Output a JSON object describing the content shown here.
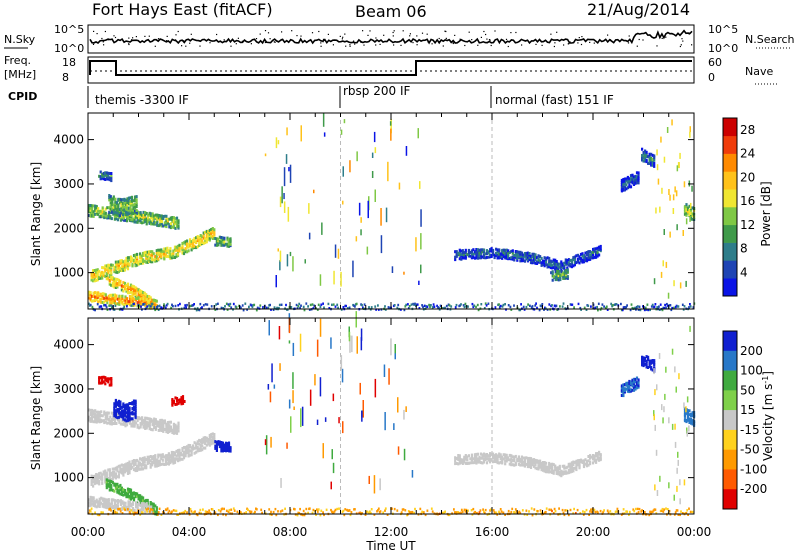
{
  "header": {
    "station": "Fort Hays East (fitACF)",
    "beam": "Beam 06",
    "date": "21/Aug/2014"
  },
  "noise_panel": {
    "left_label": "N.Sky",
    "left_ticks": [
      "10^5",
      "10^0"
    ],
    "right_ticks": [
      "10^5",
      "10^0"
    ],
    "right_label": "N.Search"
  },
  "freq_panel": {
    "left_label_1": "Freq.",
    "left_label_2": "[MHz]",
    "left_ticks": [
      "18",
      "8"
    ],
    "right_ticks": [
      "60",
      "0"
    ],
    "right_label": "Nave"
  },
  "cpid": {
    "label": "CPID",
    "segments": [
      {
        "name": "themis -3300 IF",
        "start_hour": 0
      },
      {
        "name": "rbsp 200 IF",
        "start_hour": 10
      },
      {
        "name": "normal (fast) 151 IF",
        "start_hour": 16
      }
    ]
  },
  "chart_data": [
    {
      "type": "heatmap",
      "title": "Power",
      "xlabel": "Time UT",
      "ylabel": "Slant Range [km]",
      "xlim": [
        0,
        24
      ],
      "ylim": [
        180,
        4600
      ],
      "x_ticks": [
        "00:00",
        "04:00",
        "08:00",
        "12:00",
        "16:00",
        "20:00",
        "00:00"
      ],
      "y_ticks": [
        "1000",
        "2000",
        "3000",
        "4000"
      ],
      "y_tick_values": [
        1000,
        2000,
        3000,
        4000
      ],
      "colorbar": {
        "label": "Power [dB]",
        "ticks": [
          "4",
          "8",
          "12",
          "16",
          "20",
          "24",
          "28"
        ],
        "tick_values": [
          4,
          8,
          12,
          16,
          20,
          24,
          28
        ],
        "range": [
          0,
          30
        ],
        "colors": [
          "#0a14e6",
          "#1e44b4",
          "#2e7d8a",
          "#3f9a4a",
          "#7fc845",
          "#f0e632",
          "#ffc21a",
          "#ff8a00",
          "#f03c0a",
          "#cc0000"
        ]
      },
      "regions": [
        {
          "label": "arc",
          "t": [
            0.1,
            2.0,
            3.4,
            4.5,
            5.0
          ],
          "r": [
            950,
            1350,
            1500,
            1800,
            1950
          ],
          "width": 120,
          "value": 19
        },
        {
          "label": "upper-band",
          "t": [
            0.0,
            1.4,
            2.6,
            3.6
          ],
          "r": [
            2450,
            2350,
            2250,
            2150
          ],
          "width": 130,
          "value": 15
        },
        {
          "label": "lower-spur",
          "t": [
            0.7,
            1.7,
            2.7
          ],
          "r": [
            900,
            650,
            300
          ],
          "width": 100,
          "value": 21
        },
        {
          "label": "low-band",
          "t": [
            0.0,
            1.2,
            2.5
          ],
          "r": [
            500,
            420,
            330
          ],
          "width": 90,
          "value": 23
        },
        {
          "label": "block-2500",
          "t": [
            0.8,
            1.3,
            1.9
          ],
          "r": [
            2600,
            2520,
            2600
          ],
          "width": 200,
          "value": 14
        },
        {
          "label": "patch-1700",
          "t": [
            5.0,
            5.6
          ],
          "r": [
            1750,
            1720
          ],
          "width": 90,
          "value": 14
        },
        {
          "label": "patch-3200",
          "t": [
            0.4,
            0.9
          ],
          "r": [
            3250,
            3200
          ],
          "width": 80,
          "value": 10
        },
        {
          "label": "evening-band",
          "t": [
            14.5,
            16.0,
            17.4,
            18.7,
            20.3
          ],
          "r": [
            1450,
            1500,
            1400,
            1200,
            1550
          ],
          "width": 110,
          "value": 7
        },
        {
          "label": "evening-patch",
          "t": [
            18.3,
            19.0
          ],
          "r": [
            950,
            1000
          ],
          "width": 90,
          "value": 13
        },
        {
          "label": "late-1",
          "t": [
            21.1,
            21.8
          ],
          "r": [
            3000,
            3200
          ],
          "width": 120,
          "value": 6
        },
        {
          "label": "late-2",
          "t": [
            21.9,
            22.4
          ],
          "r": [
            3700,
            3550
          ],
          "width": 120,
          "value": 9
        },
        {
          "label": "late-3",
          "t": [
            23.6,
            24.0
          ],
          "r": [
            2450,
            2350
          ],
          "width": 140,
          "value": 16
        }
      ],
      "ground_band": {
        "t": [
          0,
          24
        ],
        "r": [
          180,
          330
        ],
        "value": 6
      }
    },
    {
      "type": "heatmap",
      "title": "Velocity",
      "xlabel": "Time UT",
      "ylabel": "Slant Range [km]",
      "xlim": [
        0,
        24
      ],
      "ylim": [
        180,
        4600
      ],
      "x_ticks": [
        "00:00",
        "04:00",
        "08:00",
        "12:00",
        "16:00",
        "20:00",
        "00:00"
      ],
      "y_ticks": [
        "1000",
        "2000",
        "3000",
        "4000"
      ],
      "y_tick_values": [
        1000,
        2000,
        3000,
        4000
      ],
      "colorbar": {
        "label": "Velocity [m s^-1]",
        "ticks": [
          "200",
          "100",
          "50",
          "15",
          "-15",
          "-50",
          "-100",
          "-200"
        ],
        "colors": [
          "#1020d0",
          "#2878c8",
          "#3faa3f",
          "#7fd04a",
          "#c8c8c8",
          "#ffd21e",
          "#ff9a00",
          "#ff5a00",
          "#e00000"
        ]
      },
      "regions": [
        {
          "label": "arc",
          "t": [
            0.1,
            2.0,
            3.4,
            4.5,
            5.0
          ],
          "r": [
            950,
            1350,
            1500,
            1800,
            1950
          ],
          "width": 120,
          "value": 0
        },
        {
          "label": "upper-band",
          "t": [
            0.0,
            1.4,
            2.6,
            3.6
          ],
          "r": [
            2450,
            2350,
            2250,
            2150
          ],
          "width": 130,
          "value": 0
        },
        {
          "label": "lower-spur",
          "t": [
            0.7,
            1.7,
            2.7
          ],
          "r": [
            900,
            650,
            300
          ],
          "width": 100,
          "value": 40
        },
        {
          "label": "low-band",
          "t": [
            0.0,
            1.2,
            2.5
          ],
          "r": [
            500,
            420,
            330
          ],
          "width": 90,
          "value": 0
        },
        {
          "label": "blue-2500",
          "t": [
            1.0,
            1.5,
            1.9
          ],
          "r": [
            2600,
            2500,
            2600
          ],
          "width": 180,
          "value": 200
        },
        {
          "label": "blue-1700",
          "t": [
            5.0,
            5.6
          ],
          "r": [
            1750,
            1720
          ],
          "width": 90,
          "value": 180
        },
        {
          "label": "red-3200",
          "t": [
            0.4,
            0.9
          ],
          "r": [
            3250,
            3200
          ],
          "width": 80,
          "value": -200
        },
        {
          "label": "red-2700",
          "t": [
            3.3,
            3.8
          ],
          "r": [
            2750,
            2800
          ],
          "width": 80,
          "value": -200
        },
        {
          "label": "evening-band",
          "t": [
            14.5,
            16.0,
            17.4,
            18.7,
            20.3
          ],
          "r": [
            1450,
            1500,
            1400,
            1200,
            1550
          ],
          "width": 110,
          "value": 0
        },
        {
          "label": "late-1",
          "t": [
            21.1,
            21.8
          ],
          "r": [
            3000,
            3200
          ],
          "width": 120,
          "value": 150
        },
        {
          "label": "late-2",
          "t": [
            21.9,
            22.4
          ],
          "r": [
            3700,
            3550
          ],
          "width": 120,
          "value": 200
        },
        {
          "label": "late-3",
          "t": [
            23.6,
            24.0
          ],
          "r": [
            2450,
            2350
          ],
          "width": 140,
          "value": 120
        }
      ],
      "ground_band": {
        "t": [
          0,
          24
        ],
        "r": [
          180,
          330
        ],
        "value": -40
      }
    }
  ]
}
